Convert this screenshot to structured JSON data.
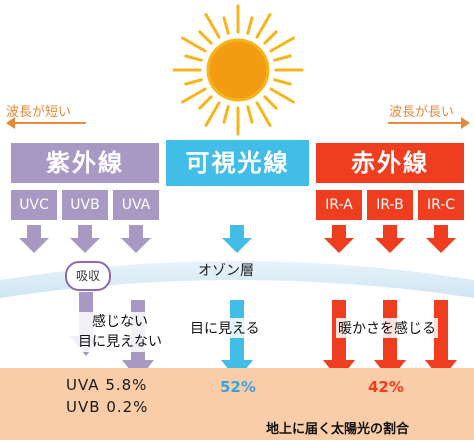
{
  "wavelength": {
    "short_label": "波長が短い",
    "long_label": "波長が長い",
    "arrow_color": "#e8883a"
  },
  "bands": {
    "uv": {
      "title": "紫外線",
      "color": "#a799c4",
      "subbands": [
        "UVC",
        "UVB",
        "UVA"
      ]
    },
    "visible": {
      "title": "可視光線",
      "color": "#41bde8"
    },
    "ir": {
      "title": "赤外線",
      "color": "#ee3e1f",
      "subbands": [
        "IR-A",
        "IR-B",
        "IR-C"
      ]
    }
  },
  "ozone": {
    "label": "オゾン層"
  },
  "absorption": {
    "label": "吸収"
  },
  "effects": {
    "uv_line1": "感じない",
    "uv_line2": "目に見えない",
    "visible": "目に見える",
    "ir": "暖かさを感じる"
  },
  "proportions": {
    "uva": {
      "label": "UVA",
      "value": "5.8%"
    },
    "uvb": {
      "label": "UVB",
      "value": "0.2%"
    },
    "visible": "52%",
    "ir": "42%"
  },
  "footnote": "地上に届く太陽光の割合",
  "icons": [
    "sun-icon",
    "left-arrow-icon",
    "right-arrow-icon",
    "down-arrow-icon"
  ]
}
